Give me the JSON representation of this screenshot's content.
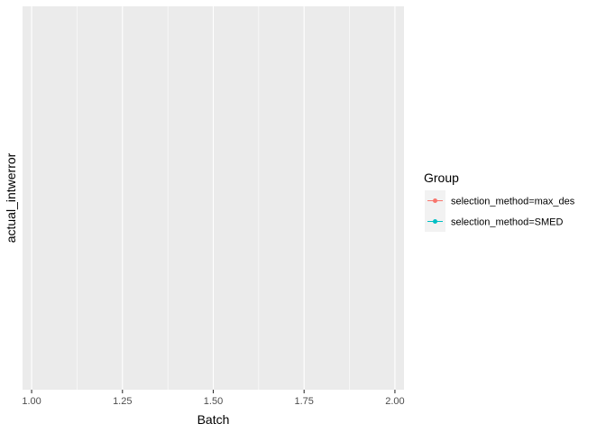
{
  "chart_data": {
    "type": "line",
    "title": "",
    "xlabel": "Batch",
    "ylabel": "actual_intwerror",
    "xlim": [
      0.975,
      2.025
    ],
    "x_ticks": [
      1.0,
      1.25,
      1.5,
      1.75,
      2.0
    ],
    "x_tick_labels": [
      "1.00",
      "1.25",
      "1.50",
      "1.75",
      "2.00"
    ],
    "y_ticks": [],
    "grid": true,
    "panel_background": "#ebebeb",
    "grid_color": "#ffffff",
    "legend": {
      "title": "Group",
      "position": "right"
    },
    "series": [
      {
        "name": "selection_method=max_des",
        "color": "#F8766D",
        "x": [],
        "y": []
      },
      {
        "name": "selection_method=SMED",
        "color": "#00BFC4",
        "x": [],
        "y": []
      }
    ]
  }
}
